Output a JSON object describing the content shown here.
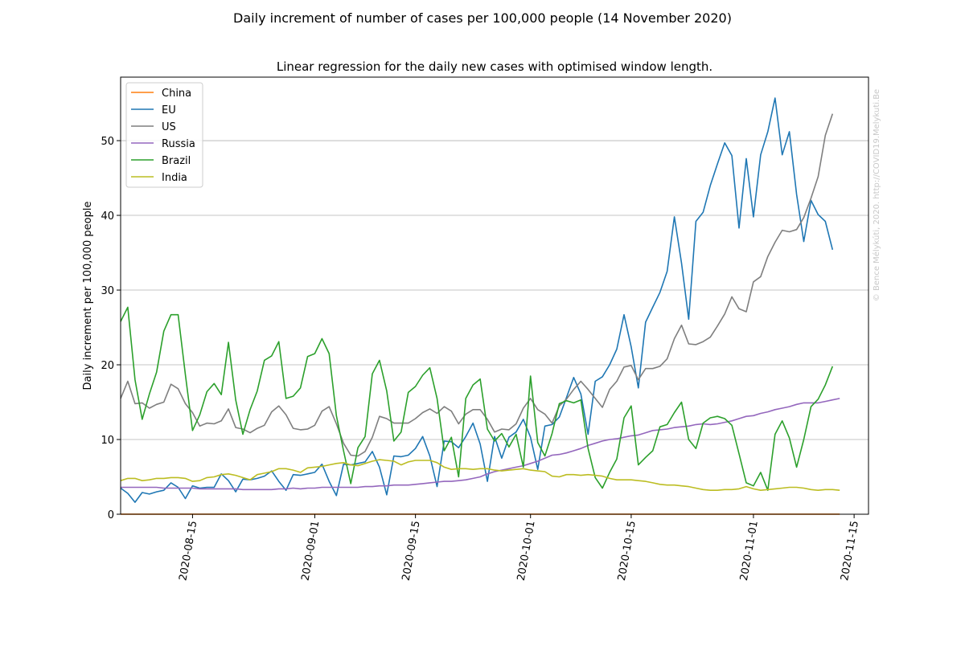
{
  "chart_data": {
    "type": "line",
    "suptitle": "Daily increment of number of cases per 100,000 people (14 November 2020)",
    "title": "Linear regression for the daily new cases with optimised window length.",
    "ylabel": "Daily increment per 100,000 people",
    "xlabel": "",
    "watermark": "© Bence Mélykúti, 2020. http://COVID19.Melykuti.Be",
    "x_start": "2020-08-05",
    "x_end": "2020-11-14",
    "xlim": [
      "2020-08-05",
      "2020-11-17"
    ],
    "ylim": [
      0,
      58.5
    ],
    "yticks": [
      0,
      10,
      20,
      30,
      40,
      50
    ],
    "xticks": [
      "2020-08-15",
      "2020-09-01",
      "2020-09-15",
      "2020-10-01",
      "2020-10-15",
      "2020-11-01",
      "2020-11-15"
    ],
    "grid": "y",
    "legend_position": "top-left",
    "series": [
      {
        "name": "China",
        "color": "#ff7f0e",
        "values": [
          0.01,
          0.01,
          0.01,
          0.01,
          0.01,
          0.01,
          0.01,
          0.01,
          0.01,
          0.01,
          0.01,
          0.01,
          0.01,
          0.01,
          0.01,
          0.01,
          0.01,
          0.01,
          0.01,
          0.01,
          0.01,
          0.01,
          0.01,
          0.01,
          0.01,
          0.01,
          0.01,
          0.01,
          0.01,
          0.01,
          0.01,
          0.01,
          0.01,
          0.01,
          0.01,
          0.01,
          0.01,
          0.01,
          0.01,
          0.01,
          0.01,
          0.01,
          0.01,
          0.01,
          0.01,
          0.01,
          0.01,
          0.01,
          0.01,
          0.01,
          0.01,
          0.01,
          0.01,
          0.01,
          0.01,
          0.01,
          0.01,
          0.01,
          0.01,
          0.01,
          0.01,
          0.01,
          0.01,
          0.01,
          0.01,
          0.01,
          0.01,
          0.01,
          0.01,
          0.01,
          0.01,
          0.01,
          0.01,
          0.01,
          0.01,
          0.01,
          0.01,
          0.01,
          0.01,
          0.01,
          0.01,
          0.01,
          0.01,
          0.01,
          0.01,
          0.01,
          0.01,
          0.01,
          0.01,
          0.01,
          0.01,
          0.01,
          0.01,
          0.01,
          0.01,
          0.01,
          0.01,
          0.01,
          0.01,
          0.01,
          0.01
        ]
      },
      {
        "name": "EU",
        "color": "#1f77b4",
        "values": [
          3.5,
          2.8,
          1.6,
          2.9,
          2.7,
          3.0,
          3.2,
          4.2,
          3.6,
          2.1,
          3.8,
          3.5,
          3.6,
          3.6,
          5.4,
          4.5,
          3.0,
          4.7,
          4.6,
          4.8,
          5.1,
          5.8,
          4.4,
          3.2,
          5.3,
          5.2,
          5.4,
          5.6,
          6.7,
          4.4,
          2.5,
          6.7,
          6.6,
          6.8,
          7.0,
          8.4,
          6.3,
          2.6,
          7.8,
          7.7,
          7.9,
          8.8,
          10.4,
          7.8,
          3.7,
          9.8,
          9.7,
          8.9,
          10.4,
          12.2,
          9.4,
          4.4,
          10.4,
          7.5,
          10.3,
          11.0,
          12.7,
          10.3,
          6.0,
          11.8,
          12.0,
          13.0,
          15.6,
          18.3,
          16.1,
          10.7,
          17.8,
          18.4,
          20.0,
          22.1,
          26.7,
          22.4,
          16.9,
          25.7,
          27.7,
          29.7,
          32.5,
          39.8,
          33.6,
          26.1,
          39.2,
          40.4,
          44.0,
          46.9,
          49.7,
          48.0,
          38.3,
          47.6,
          39.8,
          48.1,
          51.2,
          55.7,
          48.1,
          51.2,
          42.8,
          36.5,
          42.0,
          40.1,
          39.2,
          35.4
        ]
      },
      {
        "name": "US",
        "color": "#7f7f7f",
        "values": [
          15.5,
          17.8,
          14.8,
          14.9,
          14.2,
          14.7,
          15.0,
          17.4,
          16.8,
          14.8,
          13.6,
          11.8,
          12.2,
          12.1,
          12.5,
          14.1,
          11.6,
          11.4,
          10.9,
          11.5,
          11.9,
          13.7,
          14.5,
          13.3,
          11.5,
          11.3,
          11.4,
          11.9,
          13.8,
          14.4,
          12.1,
          9.5,
          7.9,
          7.8,
          8.4,
          10.3,
          13.1,
          12.8,
          12.2,
          12.2,
          12.2,
          12.8,
          13.6,
          14.1,
          13.5,
          14.4,
          13.8,
          12.1,
          13.4,
          14.0,
          14.0,
          12.7,
          11.0,
          11.4,
          11.3,
          12.1,
          14.2,
          15.5,
          14.0,
          13.4,
          12.2,
          14.5,
          15.4,
          16.7,
          17.8,
          16.7,
          15.5,
          14.3,
          16.7,
          17.8,
          19.7,
          19.9,
          18.0,
          19.5,
          19.5,
          19.8,
          20.8,
          23.5,
          25.3,
          22.8,
          22.7,
          23.1,
          23.7,
          25.2,
          26.8,
          29.1,
          27.5,
          27.1,
          31.1,
          31.8,
          34.5,
          36.4,
          38.0,
          37.8,
          38.1,
          39.7,
          42.3,
          45.2,
          50.7,
          53.6
        ]
      },
      {
        "name": "Russia",
        "color": "#9467bd",
        "values": [
          3.6,
          3.6,
          3.6,
          3.6,
          3.6,
          3.6,
          3.5,
          3.5,
          3.5,
          3.5,
          3.5,
          3.4,
          3.4,
          3.4,
          3.4,
          3.4,
          3.4,
          3.3,
          3.3,
          3.3,
          3.3,
          3.3,
          3.4,
          3.4,
          3.5,
          3.4,
          3.5,
          3.5,
          3.6,
          3.6,
          3.6,
          3.6,
          3.6,
          3.6,
          3.7,
          3.7,
          3.8,
          3.8,
          3.9,
          3.9,
          3.9,
          4.0,
          4.1,
          4.2,
          4.3,
          4.4,
          4.4,
          4.5,
          4.6,
          4.8,
          5.0,
          5.4,
          5.7,
          5.9,
          6.1,
          6.3,
          6.5,
          6.8,
          7.1,
          7.5,
          7.9,
          8.0,
          8.2,
          8.5,
          8.8,
          9.2,
          9.5,
          9.8,
          10.0,
          10.1,
          10.3,
          10.5,
          10.6,
          10.9,
          11.2,
          11.3,
          11.4,
          11.6,
          11.7,
          11.8,
          12.0,
          12.1,
          12.0,
          12.1,
          12.3,
          12.5,
          12.8,
          13.1,
          13.2,
          13.5,
          13.7,
          14.0,
          14.2,
          14.4,
          14.7,
          14.9,
          14.9,
          14.9,
          15.1,
          15.3,
          15.5
        ]
      },
      {
        "name": "Brazil",
        "color": "#2ca02c",
        "values": [
          25.8,
          27.7,
          18.0,
          12.7,
          16.1,
          19.0,
          24.5,
          26.7,
          26.7,
          18.7,
          11.2,
          13.3,
          16.4,
          17.5,
          16.0,
          23.0,
          15.3,
          10.7,
          14.0,
          16.5,
          20.6,
          21.2,
          23.1,
          15.5,
          15.8,
          16.9,
          21.1,
          21.5,
          23.5,
          21.5,
          13.2,
          8.5,
          4.1,
          8.9,
          10.4,
          18.8,
          20.6,
          16.5,
          9.8,
          11.0,
          16.3,
          17.1,
          18.6,
          19.6,
          15.5,
          8.5,
          10.3,
          5.0,
          15.5,
          17.3,
          18.1,
          11.4,
          9.8,
          10.8,
          9.0,
          10.7,
          6.3,
          18.5,
          9.6,
          7.8,
          10.8,
          14.8,
          15.2,
          14.9,
          15.3,
          8.8,
          4.9,
          3.5,
          5.6,
          7.4,
          12.9,
          14.5,
          6.6,
          7.6,
          8.5,
          11.7,
          12.0,
          13.6,
          15.0,
          10.0,
          8.8,
          12.2,
          12.9,
          13.1,
          12.8,
          11.9,
          8.1,
          4.2,
          3.8,
          5.6,
          3.2,
          10.7,
          12.5,
          10.2,
          6.3,
          10.0,
          14.4,
          15.4,
          17.3,
          19.8
        ]
      },
      {
        "name": "India",
        "color": "#bcbd22",
        "values": [
          4.5,
          4.8,
          4.8,
          4.5,
          4.6,
          4.8,
          4.8,
          4.9,
          4.9,
          4.8,
          4.4,
          4.5,
          4.9,
          5.0,
          5.3,
          5.4,
          5.2,
          4.9,
          4.6,
          5.3,
          5.5,
          5.7,
          6.1,
          6.1,
          5.9,
          5.6,
          6.2,
          6.3,
          6.4,
          6.6,
          6.8,
          6.9,
          6.6,
          6.5,
          6.8,
          7.1,
          7.3,
          7.2,
          7.1,
          6.6,
          7.0,
          7.2,
          7.2,
          7.2,
          6.9,
          6.3,
          6.0,
          6.1,
          6.1,
          6.0,
          6.1,
          6.1,
          5.9,
          5.8,
          5.9,
          6.0,
          6.1,
          5.9,
          5.8,
          5.7,
          5.1,
          5.0,
          5.3,
          5.3,
          5.2,
          5.3,
          5.2,
          5.1,
          4.8,
          4.6,
          4.6,
          4.6,
          4.5,
          4.4,
          4.2,
          4.0,
          3.9,
          3.9,
          3.8,
          3.7,
          3.5,
          3.3,
          3.2,
          3.2,
          3.3,
          3.3,
          3.4,
          3.7,
          3.4,
          3.2,
          3.3,
          3.4,
          3.5,
          3.6,
          3.6,
          3.5,
          3.3,
          3.2,
          3.3,
          3.3,
          3.2
        ]
      }
    ]
  }
}
